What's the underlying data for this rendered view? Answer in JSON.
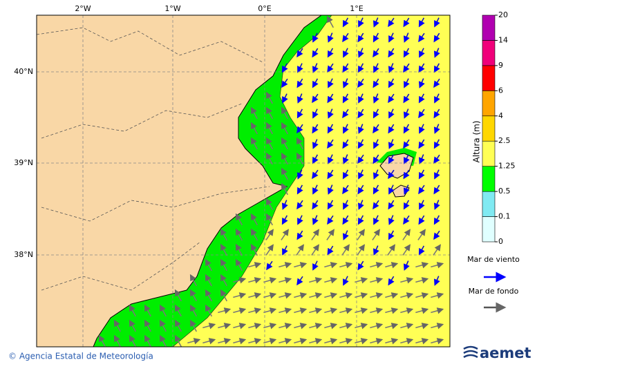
{
  "map": {
    "lon_labels": [
      "2°W",
      "1°W",
      "0°E",
      "1°E"
    ],
    "lat_labels": [
      "40°N",
      "39°N",
      "38°N"
    ],
    "colorbar": {
      "title": "Altura (m)",
      "ticks": [
        0,
        0.1,
        0.5,
        1.25,
        2.5,
        4,
        6,
        9,
        14,
        20
      ],
      "colors": [
        "#e0ffff",
        "#80eaf2",
        "#00ff00",
        "#ffff55",
        "#ffd700",
        "#ffa500",
        "#ff0000",
        "#f0007a",
        "#b000b0"
      ]
    },
    "legend": [
      {
        "label": "Mar de viento",
        "color": "#0000ff"
      },
      {
        "label": "Mar de fondo",
        "color": "#555555"
      }
    ]
  },
  "footer": {
    "credit": "© Agencia Estatal de Meteorología",
    "logo": "aemet"
  }
}
